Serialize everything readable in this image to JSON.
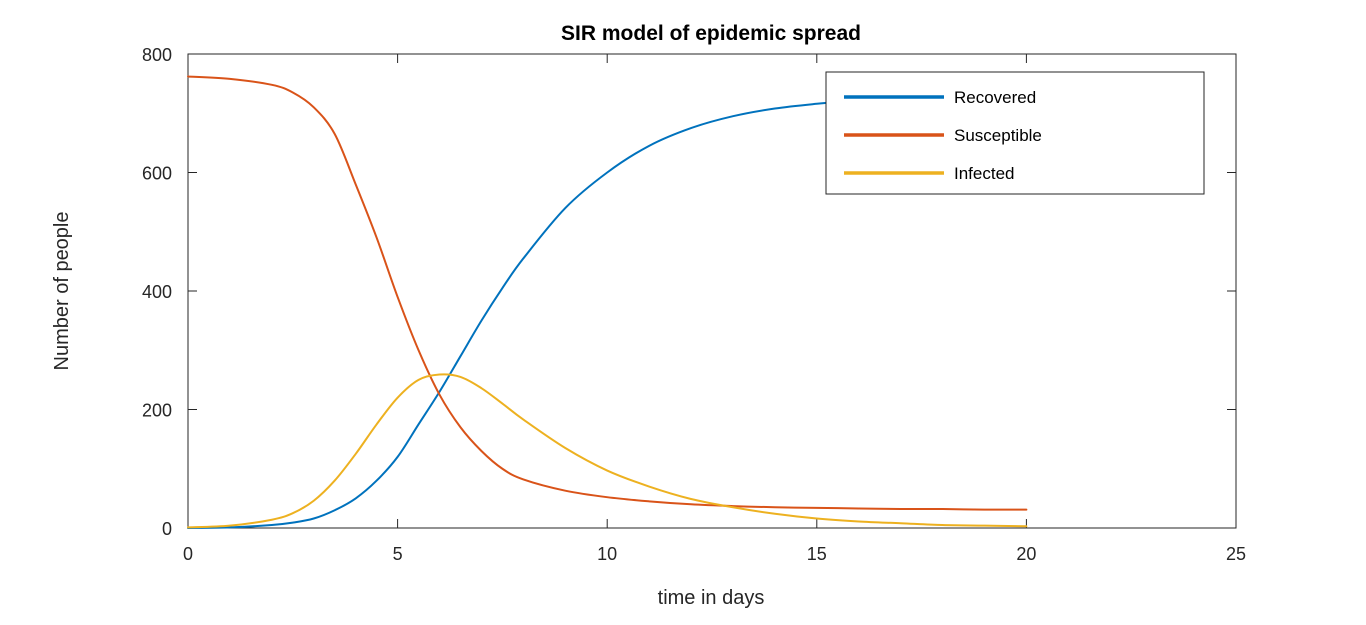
{
  "chart_data": {
    "type": "line",
    "title": "SIR model of epidemic spread",
    "xlabel": "time in days",
    "ylabel": "Number of people",
    "xlim": [
      0,
      25
    ],
    "ylim": [
      0,
      800
    ],
    "xticks": [
      "0",
      "5",
      "10",
      "15",
      "20",
      "25"
    ],
    "yticks": [
      "0",
      "200",
      "400",
      "600",
      "800"
    ],
    "grid": false,
    "legend_location": "top-right",
    "x": [
      0,
      1,
      2,
      2.5,
      3,
      3.5,
      4,
      4.5,
      5,
      5.5,
      6,
      6.5,
      7,
      7.5,
      8,
      9,
      10,
      11,
      12,
      13,
      14,
      15,
      16,
      17,
      18,
      19,
      20
    ],
    "series": [
      {
        "name": "Recovered",
        "color": "#0072BD",
        "values": [
          0,
          1,
          5,
          9,
          16,
          30,
          50,
          80,
          120,
          175,
          230,
          290,
          350,
          405,
          455,
          540,
          600,
          645,
          675,
          695,
          708,
          716,
          722,
          726,
          729,
          731,
          732
        ]
      },
      {
        "name": "Susceptible",
        "color": "#D95319",
        "values": [
          762,
          758,
          748,
          735,
          710,
          665,
          580,
          490,
          390,
          300,
          225,
          170,
          130,
          100,
          82,
          63,
          52,
          45,
          40,
          37,
          35,
          34,
          33,
          32,
          32,
          31,
          31
        ]
      },
      {
        "name": "Infected",
        "color": "#EDB120",
        "values": [
          1,
          4,
          14,
          25,
          46,
          80,
          125,
          175,
          220,
          250,
          259,
          255,
          236,
          210,
          183,
          135,
          97,
          70,
          49,
          35,
          24,
          16,
          11,
          8,
          5,
          4,
          3
        ]
      }
    ]
  }
}
